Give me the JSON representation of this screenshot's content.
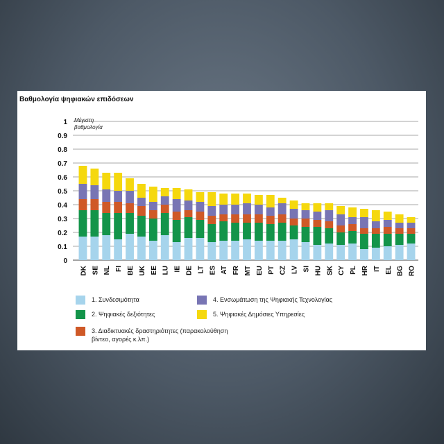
{
  "chart_data": {
    "type": "bar",
    "stacked": true,
    "title": "Βαθμολογία ψηφιακών επιδόσεων",
    "annotation": [
      "Μέγιστη",
      "βαθμολογία"
    ],
    "categories": [
      "DK",
      "SE",
      "NL",
      "FI",
      "BE",
      "UK",
      "EE",
      "LU",
      "IE",
      "DE",
      "LT",
      "ES",
      "AT",
      "FR",
      "MT",
      "EU",
      "PT",
      "CZ",
      "LV",
      "SI",
      "HU",
      "SK",
      "CY",
      "PL",
      "HR",
      "IT",
      "EL",
      "BG",
      "RO"
    ],
    "ylim": [
      0,
      1
    ],
    "yticks": [
      "0",
      "0.1",
      "0.2",
      "0.3",
      "0.4",
      "0.5",
      "0.6",
      "0.7",
      "0.8",
      "0.9",
      "1"
    ],
    "grid": true,
    "series": [
      {
        "name": "1. Συνδεσιμότητα",
        "color": "#a6d4ec",
        "values": [
          0.17,
          0.17,
          0.18,
          0.15,
          0.19,
          0.17,
          0.14,
          0.18,
          0.13,
          0.16,
          0.16,
          0.13,
          0.14,
          0.14,
          0.15,
          0.14,
          0.14,
          0.14,
          0.15,
          0.13,
          0.11,
          0.12,
          0.11,
          0.12,
          0.08,
          0.09,
          0.1,
          0.11,
          0.12
        ]
      },
      {
        "name": "2. Ψηφιακές δεξιότητες",
        "color": "#13944a",
        "values": [
          0.19,
          0.19,
          0.16,
          0.19,
          0.15,
          0.15,
          0.16,
          0.16,
          0.16,
          0.15,
          0.13,
          0.13,
          0.14,
          0.13,
          0.12,
          0.13,
          0.12,
          0.13,
          0.1,
          0.11,
          0.13,
          0.11,
          0.09,
          0.09,
          0.11,
          0.1,
          0.09,
          0.08,
          0.07
        ]
      },
      {
        "name": "3. Διαδικτυακές δραστηριότητες (παρακολούθηση βίντεο, αγορές κ.λπ.)",
        "color": "#cf5927",
        "values": [
          0.08,
          0.08,
          0.08,
          0.08,
          0.07,
          0.07,
          0.06,
          0.06,
          0.06,
          0.05,
          0.06,
          0.06,
          0.05,
          0.06,
          0.06,
          0.06,
          0.06,
          0.06,
          0.05,
          0.06,
          0.05,
          0.05,
          0.05,
          0.05,
          0.04,
          0.04,
          0.05,
          0.04,
          0.04
        ]
      },
      {
        "name": "4. Ενσωμάτωση της Ψηφιακής Τεχνολογίας",
        "color": "#7875b4",
        "values": [
          0.11,
          0.1,
          0.09,
          0.08,
          0.09,
          0.06,
          0.06,
          0.06,
          0.09,
          0.07,
          0.07,
          0.07,
          0.07,
          0.07,
          0.08,
          0.07,
          0.06,
          0.08,
          0.07,
          0.06,
          0.06,
          0.08,
          0.08,
          0.05,
          0.08,
          0.05,
          0.05,
          0.04,
          0.04
        ]
      },
      {
        "name": "5. Ψηφιακές Δημόσιες Υπηρεσίες",
        "color": "#f5d80e",
        "values": [
          0.13,
          0.12,
          0.12,
          0.13,
          0.09,
          0.1,
          0.11,
          0.06,
          0.08,
          0.08,
          0.07,
          0.1,
          0.08,
          0.08,
          0.07,
          0.07,
          0.09,
          0.04,
          0.06,
          0.05,
          0.06,
          0.05,
          0.06,
          0.07,
          0.06,
          0.08,
          0.06,
          0.06,
          0.04
        ]
      }
    ]
  },
  "legend": {
    "item1": "1. Συνδεσιμότητα",
    "item2": "2. Ψηφιακές δεξιότητες",
    "item3_line1": "3. Διαδικτυακές δραστηριότητες (παρακολούθηση",
    "item3_line2": "βίντεο, αγορές κ.λπ.)",
    "item4": "4. Ενσωμάτωση της Ψηφιακής Τεχνολογίας",
    "item5": "5. Ψηφιακές Δημόσιες Υπηρεσίες"
  }
}
